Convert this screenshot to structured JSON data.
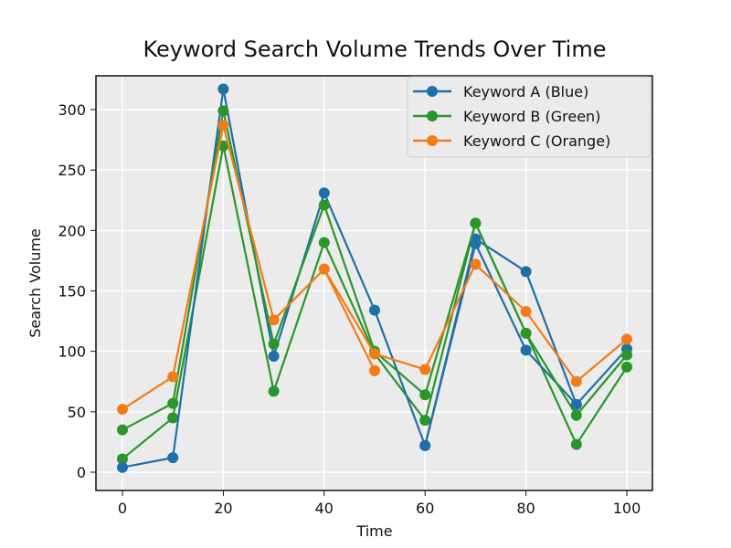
{
  "chart_data": {
    "type": "line",
    "title": "Keyword Search Volume Trends Over Time",
    "xlabel": "Time",
    "ylabel": "Search Volume",
    "x": [
      0,
      10,
      20,
      30,
      40,
      50,
      60,
      70,
      80,
      90,
      100
    ],
    "xlim": [
      -5,
      105
    ],
    "ylim": [
      -15,
      330
    ],
    "xticks": [
      0,
      20,
      40,
      60,
      80,
      100
    ],
    "yticks": [
      0,
      50,
      100,
      150,
      200,
      250,
      300
    ],
    "grid": true,
    "legend_position": "upper right",
    "series": [
      {
        "name": "Keyword A (Blue)",
        "color": "#1f6fa8",
        "values": [
          4,
          12,
          317,
          96,
          231,
          134,
          22,
          193,
          166,
          56,
          102
        ]
      },
      {
        "name": "Keyword B (Green)",
        "color": "#2a962a",
        "values": [
          35,
          57,
          299,
          106,
          221,
          100,
          64,
          206,
          115,
          47,
          97
        ]
      },
      {
        "name": "Keyword C (Orange)",
        "color": "#f07c1a",
        "values": [
          52,
          79,
          287,
          126,
          168,
          98,
          85,
          172,
          133,
          75,
          110
        ]
      }
    ],
    "extra_traces": [
      {
        "color": "#2a962a",
        "x": [
          0,
          10,
          20,
          30,
          40,
          50,
          60,
          70,
          80,
          90,
          100
        ],
        "values": [
          11,
          45,
          270,
          67,
          190,
          98,
          43,
          206,
          115,
          23,
          87
        ]
      },
      {
        "color": "#1f6fa8",
        "x": [
          60,
          70,
          80,
          90
        ],
        "values": [
          22,
          189,
          101,
          56
        ]
      },
      {
        "color": "#f07c1a",
        "x": [
          40,
          50
        ],
        "values": [
          168,
          84
        ]
      }
    ]
  }
}
